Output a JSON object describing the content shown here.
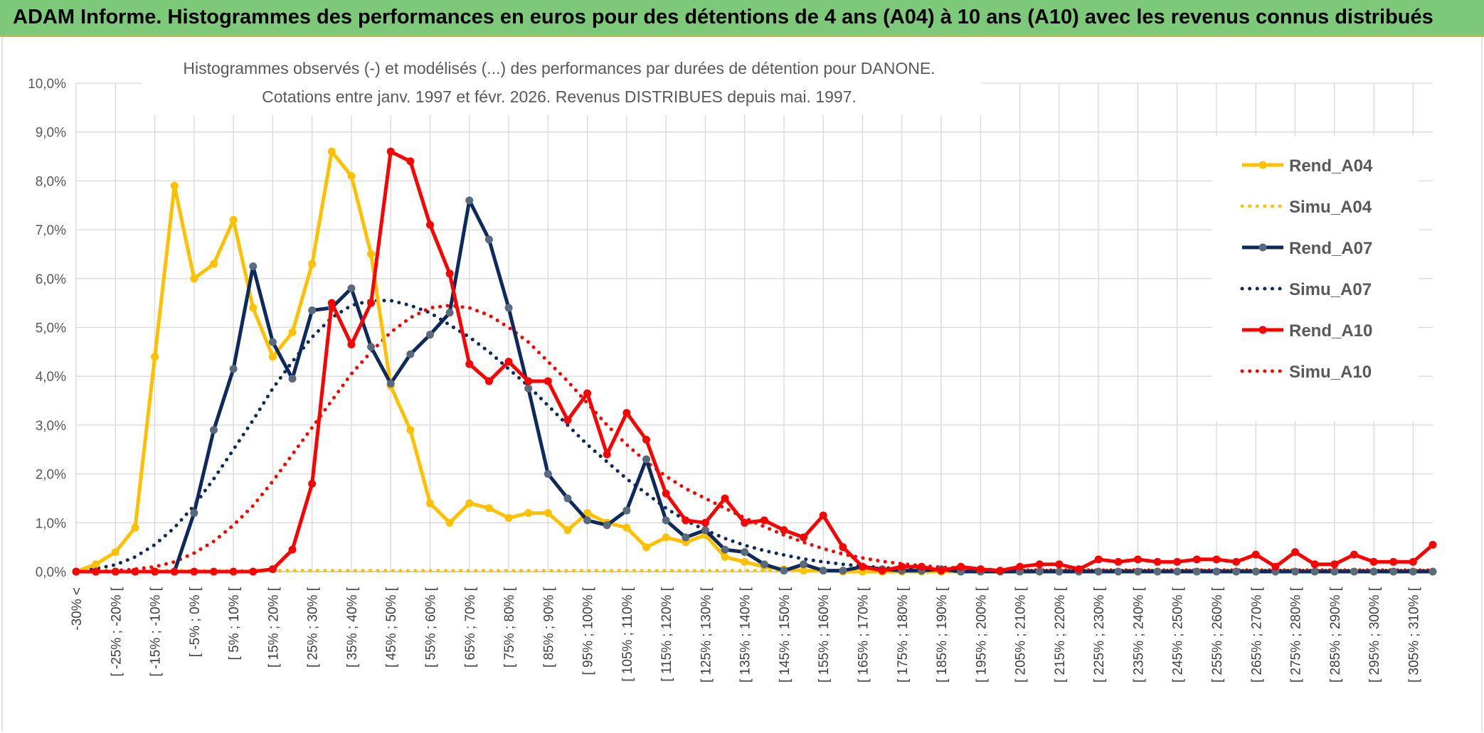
{
  "banner": {
    "title": "ADAM Informe. Histogrammes des performances en euros pour des détentions de 4 ans (A04) à 10 ans (A10) avec les revenus connus distribués"
  },
  "colors": {
    "banner_bg": "#7dc97a",
    "a04": "#ffc000",
    "a07": "#0e2a5c",
    "a10": "#ff0000",
    "grid": "#d9d9d9",
    "marker07": "#5a6a7e"
  },
  "chart_data": {
    "type": "line",
    "title": "Histogrammes observés (-) et modélisés (...) des performances par durées de détention pour DANONE.",
    "subtitle": "Cotations entre janv. 1997 et févr. 2026. Revenus DISTRIBUES depuis mai. 1997.",
    "ylim": [
      0,
      10
    ],
    "yticks": [
      "0,0%",
      "1,0%",
      "2,0%",
      "3,0%",
      "4,0%",
      "5,0%",
      "6,0%",
      "7,0%",
      "8,0%",
      "9,0%",
      "10,0%"
    ],
    "xtick_labels": [
      "-30% <",
      "[ -25% ; -20% [",
      "[ -15% ; -10% [",
      "[ -5% ; 0% [",
      "[ 5% ; 10% [",
      "[ 15% ; 20% [",
      "[ 25% ; 30% [",
      "[ 35% ; 40% [",
      "[ 45% ; 50% [",
      "[ 55% ; 60% [",
      "[ 65% ; 70% [",
      "[ 75% ; 80% [",
      "[ 85% ; 90% [",
      "[ 95% ; 100% [",
      "[ 105% ; 110% [",
      "[ 115% ; 120% [",
      "[ 125% ; 130% [",
      "[ 135% ; 140% [",
      "[ 145% ; 150% [",
      "[ 155% ; 160% [",
      "[ 165% ; 170% [",
      "[ 175% ; 180% [",
      "[ 185% ; 190% [",
      "[ 195% ; 200% [",
      "[ 205% ; 210% [",
      "[ 215% ; 220% [",
      "[ 225% ; 230% [",
      "[ 235% ; 240% [",
      "[ 245% ; 250% [",
      "[ 255% ; 260% [",
      "[ 265% ; 270% [",
      "[ 275% ; 280% [",
      "[ 285% ; 290% [",
      "[ 295% ; 300% [",
      "[ 305% ; 310% ["
    ],
    "legend_position": "right",
    "series": [
      {
        "name": "Rend_A04",
        "style": "solid",
        "color": "#ffc000",
        "values": [
          0.0,
          0.15,
          0.4,
          0.9,
          4.4,
          7.9,
          6.0,
          6.3,
          7.2,
          5.4,
          4.4,
          4.9,
          6.3,
          8.6,
          8.1,
          6.5,
          3.8,
          2.9,
          1.4,
          1.0,
          1.4,
          1.3,
          1.1,
          1.2,
          1.2,
          0.85,
          1.2,
          1.0,
          0.9,
          0.5,
          0.7,
          0.6,
          0.75,
          0.3,
          0.2,
          0.1,
          0.05,
          0.02,
          0.02,
          0.0,
          0.0,
          0.0,
          0.0,
          0.0,
          0.0,
          0.0,
          0.0,
          0.0,
          0.0,
          0.0,
          0.0,
          0.0,
          0.0,
          0.0,
          0.0,
          0.0,
          0.0,
          0.0,
          0.0,
          0.0,
          0.0,
          0.0,
          0.0,
          0.0,
          0.0,
          0.0,
          0.0,
          0.0,
          0.0,
          0.0
        ]
      },
      {
        "name": "Simu_A04",
        "style": "dotted",
        "color": "#ffc000",
        "values": [
          0.02,
          0.02,
          0.02,
          0.02,
          0.02,
          0.02,
          0.02,
          0.02,
          0.02,
          0.02,
          0.02,
          0.02,
          0.02,
          0.02,
          0.02,
          0.02,
          0.02,
          0.02,
          0.02,
          0.02,
          0.02,
          0.02,
          0.02,
          0.02,
          0.02,
          0.02,
          0.02,
          0.02,
          0.02,
          0.02,
          0.02,
          0.02,
          0.02,
          0.02,
          0.02,
          0.02,
          0.02,
          0.02,
          0.02,
          0.02,
          0.02,
          0.02,
          0.02,
          0.02,
          0.02,
          0.02,
          0.02,
          0.02,
          0.02,
          0.02,
          0.02,
          0.02,
          0.02,
          0.02,
          0.02,
          0.02,
          0.02,
          0.02,
          0.02,
          0.02,
          0.02,
          0.02,
          0.02,
          0.02,
          0.02,
          0.02,
          0.02,
          0.02,
          0.02,
          0.02
        ]
      },
      {
        "name": "Rend_A07",
        "style": "solid",
        "color": "#0e2a5c",
        "values": [
          0.0,
          0.0,
          0.0,
          0.0,
          0.0,
          0.0,
          1.2,
          2.9,
          4.15,
          6.25,
          4.7,
          3.95,
          5.35,
          5.4,
          5.8,
          4.6,
          3.85,
          4.45,
          4.85,
          5.3,
          7.6,
          6.8,
          5.4,
          3.75,
          2.0,
          1.5,
          1.05,
          0.95,
          1.25,
          2.3,
          1.05,
          0.7,
          0.85,
          0.45,
          0.4,
          0.15,
          0.02,
          0.15,
          0.02,
          0.02,
          0.1,
          0.05,
          0.02,
          0.02,
          0.05,
          0.0,
          0.0,
          0.0,
          0.0,
          0.0,
          0.0,
          0.0,
          0.0,
          0.0,
          0.0,
          0.0,
          0.0,
          0.0,
          0.0,
          0.0,
          0.0,
          0.0,
          0.0,
          0.0,
          0.0,
          0.0,
          0.0,
          0.0,
          0.0,
          0.0
        ]
      },
      {
        "name": "Simu_A07",
        "style": "dotted",
        "color": "#0e2a5c",
        "values": [
          0.02,
          0.06,
          0.14,
          0.3,
          0.55,
          0.9,
          1.35,
          1.9,
          2.5,
          3.1,
          3.75,
          4.3,
          4.8,
          5.2,
          5.45,
          5.55,
          5.55,
          5.45,
          5.3,
          5.05,
          4.8,
          4.5,
          4.15,
          3.8,
          3.4,
          3.0,
          2.6,
          2.25,
          1.9,
          1.6,
          1.3,
          1.05,
          0.85,
          0.68,
          0.54,
          0.43,
          0.34,
          0.26,
          0.2,
          0.15,
          0.11,
          0.08,
          0.06,
          0.04,
          0.03,
          0.02,
          0.02,
          0.02,
          0.02,
          0.02,
          0.02,
          0.02,
          0.02,
          0.02,
          0.02,
          0.02,
          0.02,
          0.02,
          0.02,
          0.02,
          0.02,
          0.02,
          0.02,
          0.02,
          0.02,
          0.02,
          0.02,
          0.02,
          0.02,
          0.02
        ]
      },
      {
        "name": "Rend_A10",
        "style": "solid",
        "color": "#ff0000",
        "values": [
          0.0,
          0.0,
          0.0,
          0.0,
          0.0,
          0.0,
          0.0,
          0.0,
          0.0,
          0.0,
          0.05,
          0.45,
          1.8,
          5.5,
          4.65,
          5.5,
          8.6,
          8.4,
          7.1,
          6.1,
          4.25,
          3.9,
          4.3,
          3.9,
          3.9,
          3.1,
          3.65,
          2.4,
          3.25,
          2.7,
          1.6,
          1.05,
          1.0,
          1.5,
          1.0,
          1.05,
          0.85,
          0.7,
          1.15,
          0.5,
          0.1,
          0.02,
          0.1,
          0.1,
          0.02,
          0.1,
          0.05,
          0.02,
          0.1,
          0.15,
          0.15,
          0.05,
          0.25,
          0.2,
          0.25,
          0.2,
          0.2,
          0.25,
          0.25,
          0.2,
          0.35,
          0.1,
          0.4,
          0.15,
          0.15,
          0.35,
          0.2,
          0.2,
          0.2,
          0.55
        ]
      },
      {
        "name": "Simu_A10",
        "style": "dotted",
        "color": "#ff0000",
        "values": [
          0.0,
          0.0,
          0.02,
          0.05,
          0.1,
          0.2,
          0.38,
          0.62,
          0.95,
          1.35,
          1.85,
          2.4,
          2.95,
          3.5,
          4.05,
          4.5,
          4.9,
          5.2,
          5.4,
          5.45,
          5.4,
          5.25,
          5.0,
          4.7,
          4.3,
          3.9,
          3.45,
          3.0,
          2.6,
          2.25,
          1.95,
          1.7,
          1.5,
          1.3,
          1.1,
          0.92,
          0.75,
          0.6,
          0.47,
          0.36,
          0.28,
          0.21,
          0.16,
          0.12,
          0.09,
          0.07,
          0.05,
          0.04,
          0.03,
          0.03,
          0.03,
          0.03,
          0.03,
          0.03,
          0.03,
          0.03,
          0.03,
          0.03,
          0.03,
          0.03,
          0.03,
          0.03,
          0.03,
          0.03,
          0.03,
          0.03,
          0.03,
          0.03,
          0.03,
          0.03
        ]
      }
    ]
  }
}
